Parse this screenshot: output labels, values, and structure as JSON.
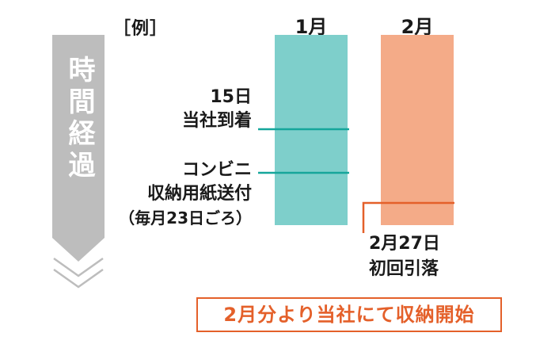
{
  "example_label": "［例］",
  "time_axis": {
    "label": "時間経過"
  },
  "months": [
    "1月",
    "2月"
  ],
  "events": [
    {
      "lines": [
        "15日",
        "当社到着"
      ]
    },
    {
      "lines": [
        "コンビニ",
        "収納用紙送付",
        "（毎月23日ごろ）"
      ]
    }
  ],
  "debit_event": {
    "lines": [
      "2月27日",
      "初回引落"
    ]
  },
  "start_notice": "2月分より当社にて収納開始",
  "colors": {
    "january_bar": "#7ecfcb",
    "february_bar": "#f4ab88",
    "january_line": "#15a69b",
    "february_line": "#e4602a",
    "arrow_gray": "#bdbdbd",
    "notice_border": "#e4602a"
  }
}
